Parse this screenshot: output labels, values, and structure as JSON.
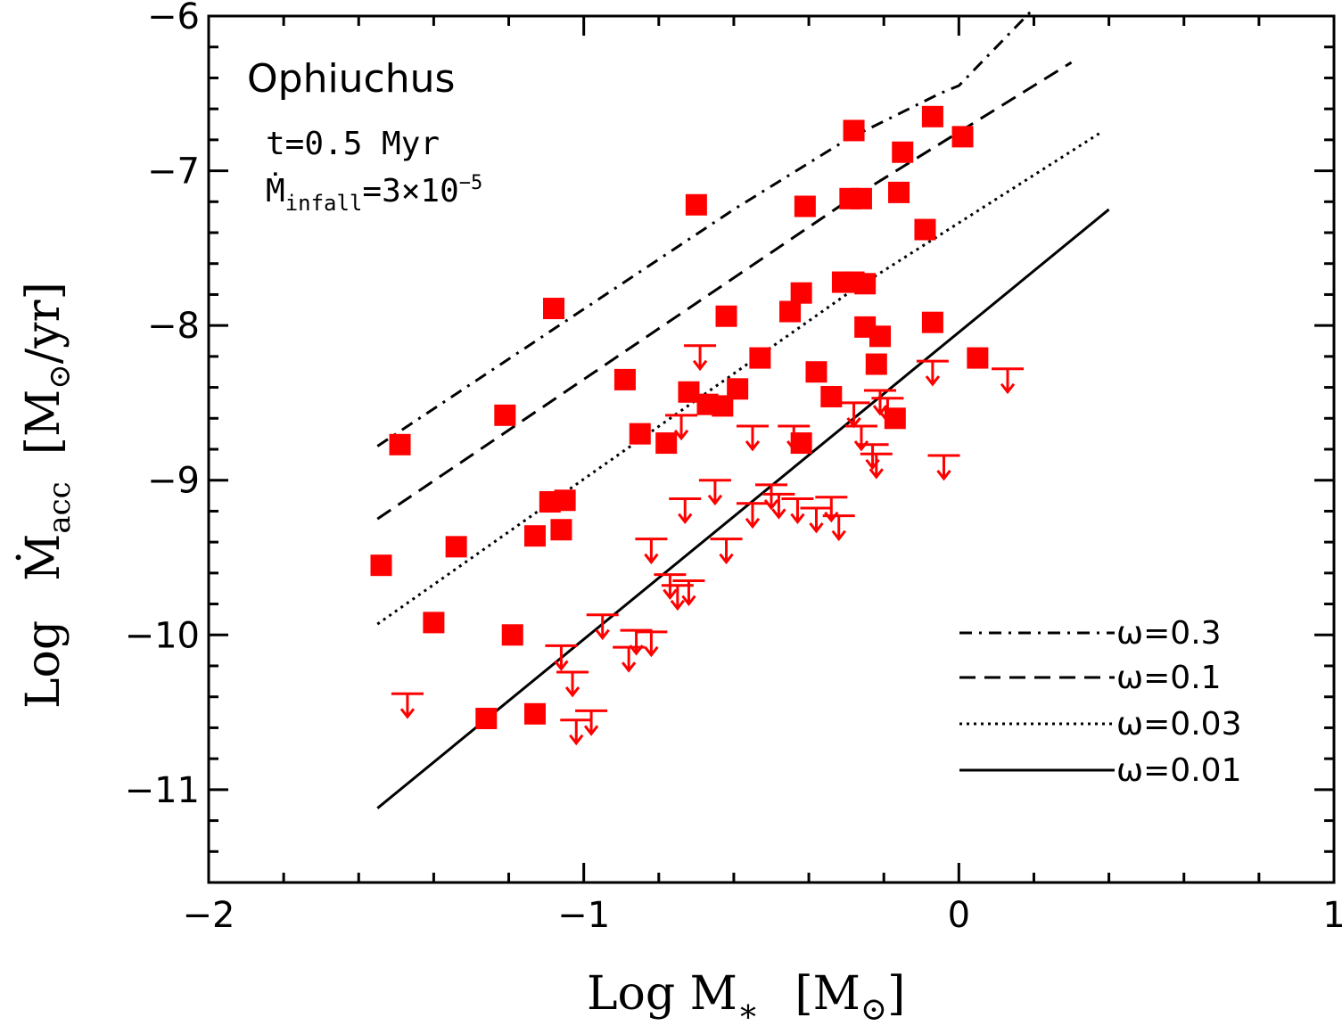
{
  "chart_data": {
    "type": "scatter",
    "region_label": "Ophiuchus",
    "annotation_time": "t=0.5 Myr",
    "annotation_infall": {
      "symbol": "Ṁ",
      "subscript": "infall",
      "value": "=3×10",
      "exponent": "−5"
    },
    "xlabel": {
      "text": "Log M",
      "subscript": "∗",
      "unit": "[M",
      "unit_sub": "⊙",
      "unit_close": "]"
    },
    "ylabel": {
      "text": "Log",
      "symbol": "Ṁ",
      "subscript": "acc",
      "unit": "[M",
      "unit_sub": "⊙",
      "unit_rest": "/yr]"
    },
    "xlim": [
      -2,
      1
    ],
    "ylim": [
      -11.6,
      -6
    ],
    "x_ticks": [
      -2,
      -1,
      0,
      1
    ],
    "x_tick_labels": [
      "−2",
      "−1",
      "0",
      "1"
    ],
    "y_ticks": [
      -11,
      -10,
      -9,
      -8,
      -7,
      -6
    ],
    "y_tick_labels": [
      "−11",
      "−10",
      "−9",
      "−8",
      "−7",
      "−6"
    ],
    "marker_color": "#ff0000",
    "detections": [
      {
        "x": -0.7,
        "y": -7.22
      },
      {
        "x": -0.41,
        "y": -7.23
      },
      {
        "x": -0.28,
        "y": -6.74
      },
      {
        "x": -0.07,
        "y": -6.65
      },
      {
        "x": 0.01,
        "y": -6.78
      },
      {
        "x": -0.15,
        "y": -6.88
      },
      {
        "x": -0.29,
        "y": -7.18
      },
      {
        "x": -0.26,
        "y": -7.18
      },
      {
        "x": -0.16,
        "y": -7.14
      },
      {
        "x": -0.09,
        "y": -7.38
      },
      {
        "x": -0.31,
        "y": -7.72
      },
      {
        "x": -0.28,
        "y": -7.72
      },
      {
        "x": -0.25,
        "y": -7.73
      },
      {
        "x": -0.42,
        "y": -7.79
      },
      {
        "x": -0.45,
        "y": -7.91
      },
      {
        "x": -0.62,
        "y": -7.94
      },
      {
        "x": -0.07,
        "y": -7.98
      },
      {
        "x": -0.25,
        "y": -8.01
      },
      {
        "x": -0.21,
        "y": -8.07
      },
      {
        "x": -0.53,
        "y": -8.21
      },
      {
        "x": -0.22,
        "y": -8.25
      },
      {
        "x": -0.38,
        "y": -8.3
      },
      {
        "x": -0.34,
        "y": -8.46
      },
      {
        "x": -0.72,
        "y": -8.43
      },
      {
        "x": -0.59,
        "y": -8.41
      },
      {
        "x": -0.67,
        "y": -8.51
      },
      {
        "x": -0.63,
        "y": -8.52
      },
      {
        "x": -0.89,
        "y": -8.35
      },
      {
        "x": -0.17,
        "y": -8.6
      },
      {
        "x": -0.85,
        "y": -8.7
      },
      {
        "x": -0.78,
        "y": -8.76
      },
      {
        "x": -0.42,
        "y": -8.76
      },
      {
        "x": 0.05,
        "y": -8.21
      },
      {
        "x": -1.08,
        "y": -7.89
      },
      {
        "x": -1.21,
        "y": -8.58
      },
      {
        "x": -1.49,
        "y": -8.77
      },
      {
        "x": -1.09,
        "y": -9.14
      },
      {
        "x": -1.05,
        "y": -9.13
      },
      {
        "x": -1.13,
        "y": -9.36
      },
      {
        "x": -1.06,
        "y": -9.32
      },
      {
        "x": -1.34,
        "y": -9.43
      },
      {
        "x": -1.54,
        "y": -9.55
      },
      {
        "x": -1.4,
        "y": -9.92
      },
      {
        "x": -1.19,
        "y": -10.0
      },
      {
        "x": -1.26,
        "y": -10.54
      },
      {
        "x": -1.13,
        "y": -10.51
      }
    ],
    "upper_limits": [
      {
        "x": -0.69,
        "y": -8.13
      },
      {
        "x": -0.74,
        "y": -8.58
      },
      {
        "x": -0.55,
        "y": -8.65
      },
      {
        "x": -0.44,
        "y": -8.65
      },
      {
        "x": -0.28,
        "y": -8.5
      },
      {
        "x": -0.26,
        "y": -8.65
      },
      {
        "x": -0.21,
        "y": -8.42
      },
      {
        "x": -0.19,
        "y": -8.47
      },
      {
        "x": -0.23,
        "y": -8.77
      },
      {
        "x": -0.22,
        "y": -8.83
      },
      {
        "x": -0.07,
        "y": -8.23
      },
      {
        "x": 0.13,
        "y": -8.28
      },
      {
        "x": -0.04,
        "y": -8.84
      },
      {
        "x": -0.73,
        "y": -9.12
      },
      {
        "x": -0.65,
        "y": -9.0
      },
      {
        "x": -0.55,
        "y": -9.15
      },
      {
        "x": -0.5,
        "y": -9.03
      },
      {
        "x": -0.48,
        "y": -9.09
      },
      {
        "x": -0.43,
        "y": -9.12
      },
      {
        "x": -0.38,
        "y": -9.18
      },
      {
        "x": -0.34,
        "y": -9.11
      },
      {
        "x": -0.32,
        "y": -9.23
      },
      {
        "x": -0.82,
        "y": -9.38
      },
      {
        "x": -0.62,
        "y": -9.38
      },
      {
        "x": -0.77,
        "y": -9.61
      },
      {
        "x": -0.75,
        "y": -9.68
      },
      {
        "x": -0.72,
        "y": -9.65
      },
      {
        "x": -0.95,
        "y": -9.87
      },
      {
        "x": -0.88,
        "y": -10.08
      },
      {
        "x": -0.86,
        "y": -9.97
      },
      {
        "x": -0.82,
        "y": -9.98
      },
      {
        "x": -1.06,
        "y": -10.07
      },
      {
        "x": -1.03,
        "y": -10.24
      },
      {
        "x": -1.47,
        "y": -10.38
      },
      {
        "x": -1.02,
        "y": -10.55
      },
      {
        "x": -0.98,
        "y": -10.49
      }
    ],
    "series": [
      {
        "name": "ω=0.3",
        "style": "dash-dot",
        "x": [
          -1.55,
          -0.6,
          -0.3,
          -0.05,
          0.0,
          0.2
        ],
        "y": [
          -8.78,
          -7.25,
          -6.8,
          -6.5,
          -6.45,
          -5.95
        ]
      },
      {
        "name": "ω=0.1",
        "style": "dashed",
        "x": [
          -1.55,
          -0.3,
          0.3
        ],
        "y": [
          -9.25,
          -7.2,
          -6.3
        ]
      },
      {
        "name": "ω=0.03",
        "style": "dotted",
        "x": [
          -1.55,
          -0.3,
          0.38
        ],
        "y": [
          -9.93,
          -7.8,
          -6.75
        ]
      },
      {
        "name": "ω=0.01",
        "style": "solid",
        "x": [
          -1.55,
          0.4
        ],
        "y": [
          -11.12,
          -7.25
        ]
      }
    ]
  }
}
